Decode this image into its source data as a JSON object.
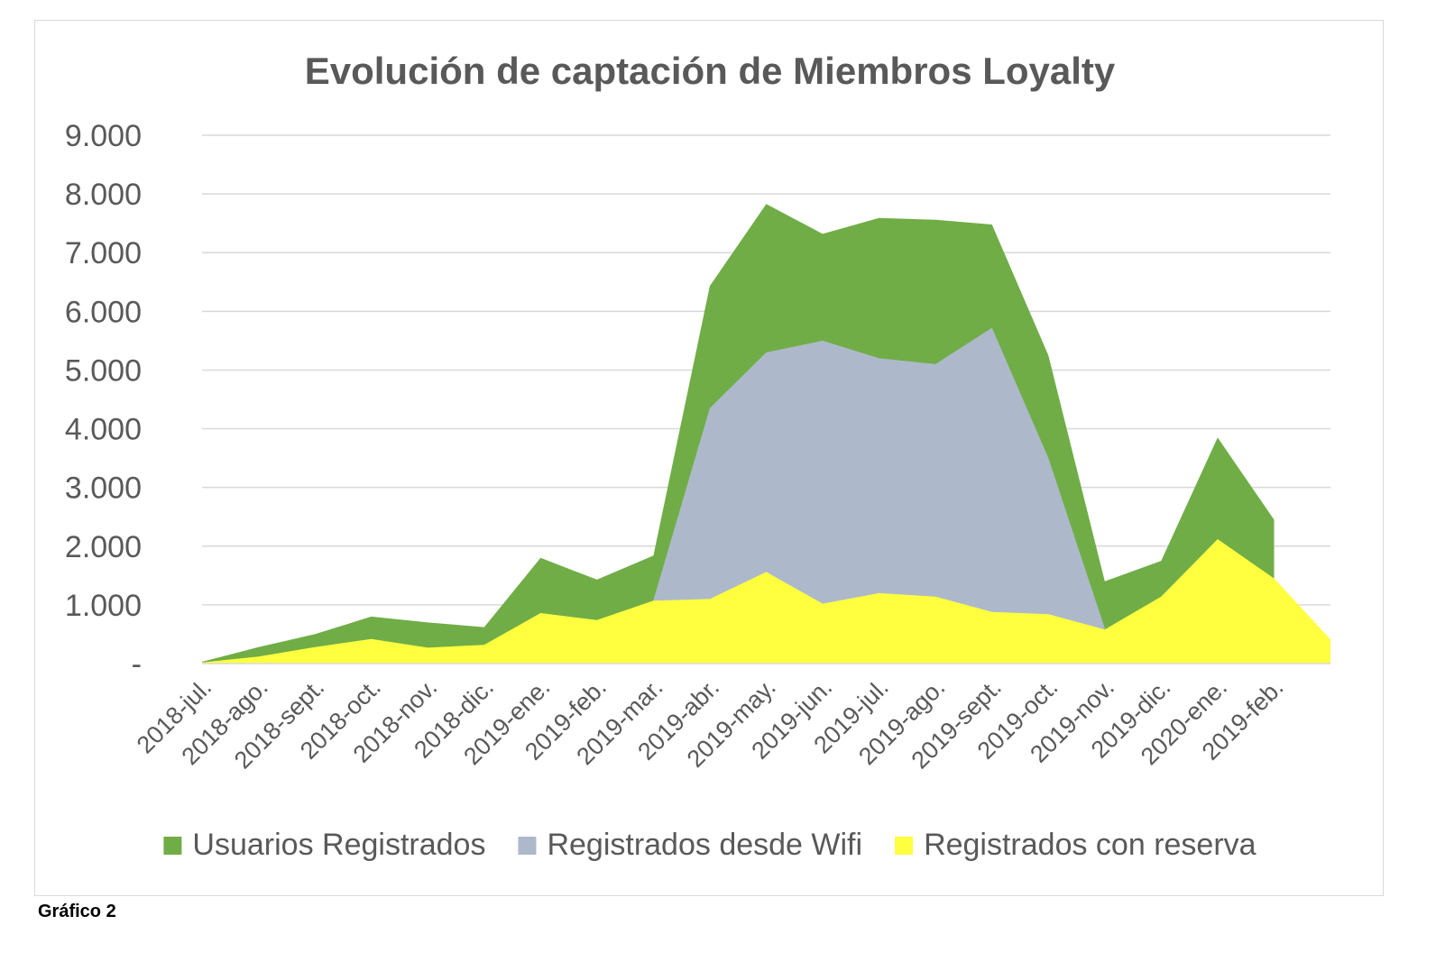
{
  "caption": "Gráfico 2",
  "chart_data": {
    "type": "area",
    "stacked": false,
    "title": "Evolución de captación de Miembros Loyalty",
    "xlabel": "",
    "ylabel": "",
    "ylim": [
      0,
      9000
    ],
    "y_ticks": [
      0,
      1000,
      2000,
      3000,
      4000,
      5000,
      6000,
      7000,
      8000,
      9000
    ],
    "y_tick_labels": [
      "-",
      "1.000",
      "2.000",
      "3.000",
      "4.000",
      "5.000",
      "6.000",
      "7.000",
      "8.000",
      "9.000"
    ],
    "grid": true,
    "legend_position": "bottom",
    "categories": [
      "2018-jul.",
      "2018-ago.",
      "2018-sept.",
      "2018-oct.",
      "2018-nov.",
      "2018-dic.",
      "2019-ene.",
      "2019-feb.",
      "2019-mar.",
      "2019-abr.",
      "2019-may.",
      "2019-jun.",
      "2019-jul.",
      "2019-ago.",
      "2019-sept.",
      "2019-oct.",
      "2019-nov.",
      "2019-dic.",
      "2020-ene.",
      "2019-feb.",
      ""
    ],
    "series": [
      {
        "name": "Usuarios Registrados",
        "color": "#70ad47",
        "values": [
          30,
          280,
          500,
          800,
          700,
          620,
          1800,
          1430,
          1840,
          6430,
          7830,
          7320,
          7590,
          7560,
          7480,
          5250,
          1400,
          1750,
          3850,
          2450,
          null
        ]
      },
      {
        "name": "Registrados desde Wifi",
        "color": "#adb9ca",
        "values": [
          null,
          null,
          null,
          null,
          null,
          null,
          null,
          null,
          1080,
          4350,
          5300,
          5500,
          5200,
          5100,
          5720,
          3500,
          600,
          null,
          null,
          null,
          null
        ]
      },
      {
        "name": "Registrados con reserva",
        "color": "#ffff3f",
        "values": [
          20,
          120,
          280,
          420,
          270,
          320,
          860,
          740,
          1070,
          1100,
          1560,
          1020,
          1200,
          1140,
          880,
          840,
          580,
          1140,
          2120,
          1450,
          410
        ]
      }
    ]
  }
}
